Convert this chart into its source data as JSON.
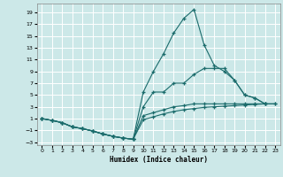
{
  "title": "",
  "xlabel": "Humidex (Indice chaleur)",
  "background_color": "#cce8e8",
  "grid_color": "#ffffff",
  "line_color": "#1a6b6b",
  "xlim": [
    -0.5,
    23.5
  ],
  "ylim": [
    -3.5,
    20.5
  ],
  "xticks": [
    0,
    1,
    2,
    3,
    4,
    5,
    6,
    7,
    8,
    9,
    10,
    11,
    12,
    13,
    14,
    15,
    16,
    17,
    18,
    19,
    20,
    21,
    22,
    23
  ],
  "yticks": [
    -3,
    -1,
    1,
    3,
    5,
    7,
    9,
    11,
    13,
    15,
    17,
    19
  ],
  "series": [
    {
      "x": [
        0,
        1,
        2,
        3,
        4,
        5,
        6,
        7,
        8,
        9,
        10,
        11,
        12,
        13,
        14,
        15,
        16,
        17,
        18,
        19,
        20,
        21,
        22,
        23
      ],
      "y": [
        1,
        0.7,
        0.3,
        -0.4,
        -0.7,
        -1.1,
        -1.6,
        -2.0,
        -2.3,
        -2.5,
        5.5,
        9.0,
        12.0,
        15.5,
        18.0,
        19.5,
        13.5,
        10.0,
        9.0,
        7.5,
        5.0,
        4.5,
        3.5,
        null
      ]
    },
    {
      "x": [
        0,
        1,
        2,
        3,
        4,
        5,
        6,
        7,
        8,
        9,
        10,
        11,
        12,
        13,
        14,
        15,
        16,
        17,
        18,
        19,
        20,
        21,
        22,
        23
      ],
      "y": [
        1,
        0.7,
        0.3,
        -0.4,
        -0.7,
        -1.1,
        -1.6,
        -2.0,
        -2.3,
        -2.5,
        3.0,
        5.5,
        5.5,
        7.0,
        7.0,
        8.5,
        9.5,
        9.5,
        9.5,
        7.5,
        5.0,
        4.5,
        3.5,
        null
      ]
    },
    {
      "x": [
        0,
        1,
        2,
        3,
        4,
        5,
        6,
        7,
        8,
        9,
        10,
        11,
        12,
        13,
        14,
        15,
        16,
        17,
        18,
        19,
        20,
        21,
        22,
        23
      ],
      "y": [
        1,
        0.7,
        0.3,
        -0.4,
        -0.7,
        -1.1,
        -1.6,
        -2.0,
        -2.3,
        -2.5,
        1.5,
        2.0,
        2.5,
        3.0,
        3.2,
        3.5,
        3.5,
        3.5,
        3.5,
        3.5,
        3.5,
        3.5,
        3.5,
        3.5
      ]
    },
    {
      "x": [
        0,
        1,
        2,
        3,
        4,
        5,
        6,
        7,
        8,
        9,
        10,
        11,
        12,
        13,
        14,
        15,
        16,
        17,
        18,
        19,
        20,
        21,
        22,
        23
      ],
      "y": [
        1,
        0.7,
        0.3,
        -0.4,
        -0.7,
        -1.1,
        -1.6,
        -2.0,
        -2.3,
        -2.5,
        0.8,
        1.3,
        1.8,
        2.2,
        2.5,
        2.7,
        2.9,
        3.0,
        3.1,
        3.2,
        3.3,
        3.4,
        3.5,
        3.5
      ]
    }
  ]
}
